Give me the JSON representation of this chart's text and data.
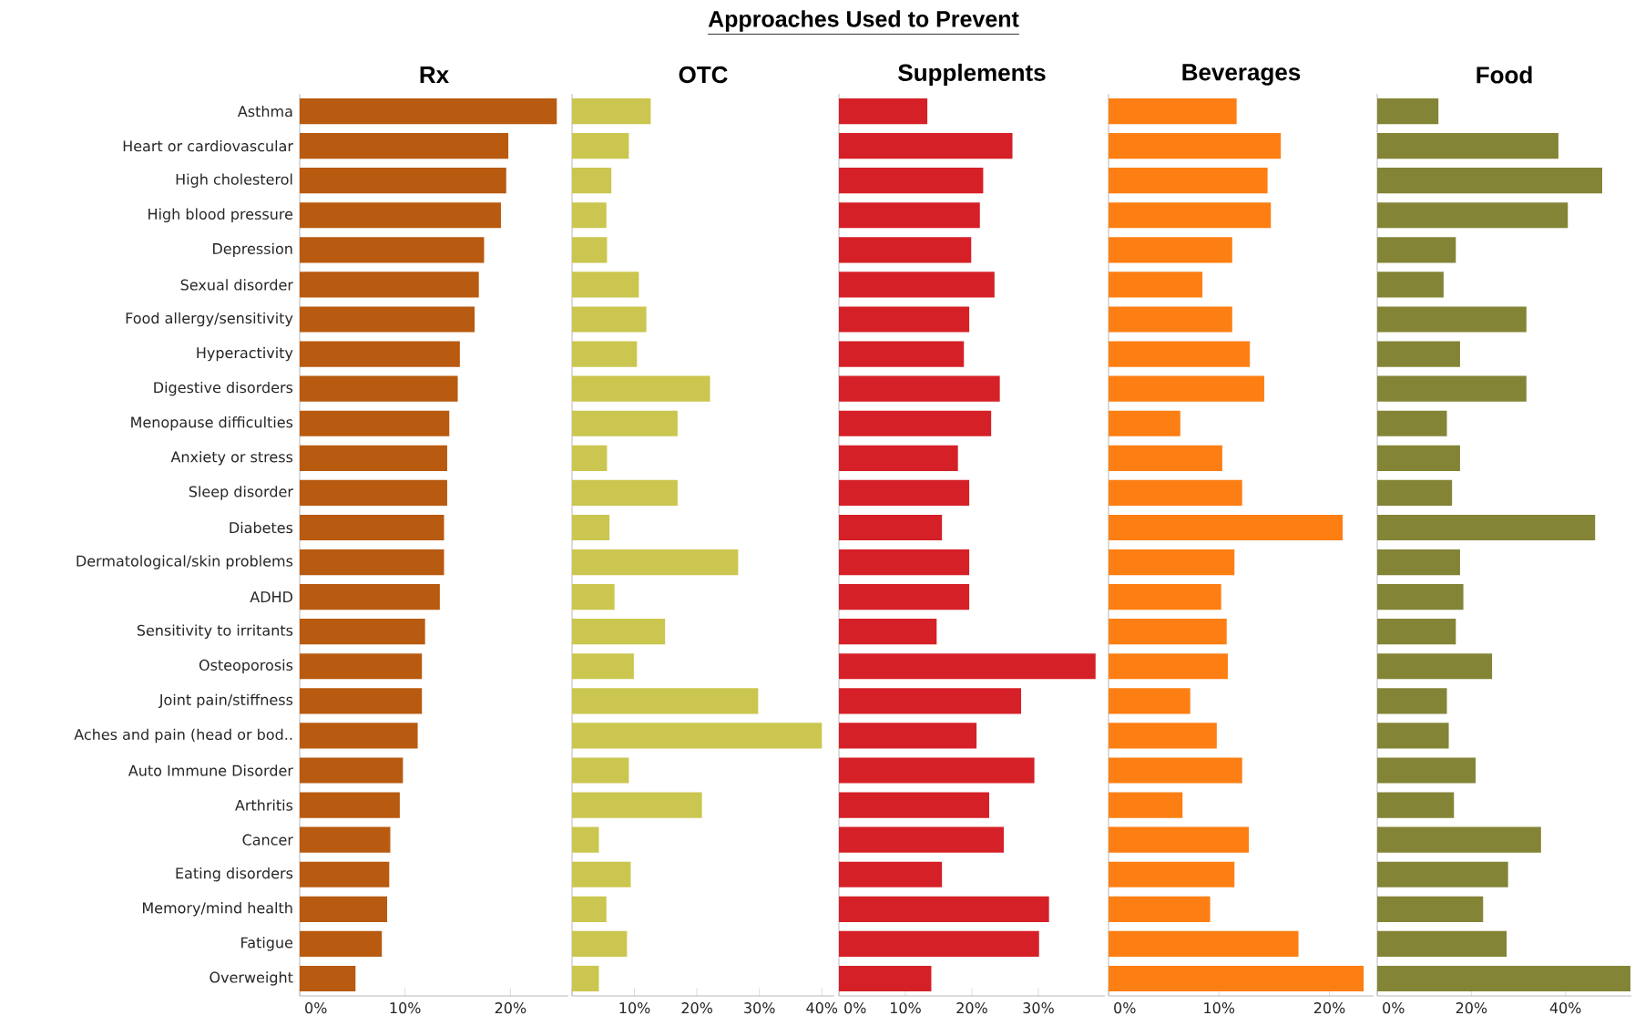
{
  "chart_data": [
    {
      "type": "bar",
      "orientation": "horizontal",
      "title": "Rx",
      "color": "#b85a0f",
      "categories": [
        "Asthma",
        "Heart or cardiovascular",
        "High cholesterol",
        "High blood pressure",
        "Depression",
        "Sexual disorder",
        "Food allergy/sensitivity",
        "Hyperactivity",
        "Digestive disorders",
        "Menopause difficulties",
        "Anxiety or stress",
        "Sleep disorder",
        "Diabetes",
        "Dermatological/skin problems",
        "ADHD",
        "Sensitivity to irritants",
        "Osteoporosis",
        "Joint pain/stiffness",
        "Aches and pain (head or bod..",
        "Auto Immune Disorder",
        "Arthritis",
        "Cancer",
        "Eating disorders",
        "Memory/mind health",
        "Fatigue",
        "Overweight"
      ],
      "values": [
        24.4,
        19.8,
        19.6,
        19.1,
        17.5,
        17.0,
        16.6,
        15.2,
        15.0,
        14.2,
        14.0,
        14.0,
        13.7,
        13.7,
        13.3,
        11.9,
        11.6,
        11.6,
        11.2,
        9.8,
        9.5,
        8.6,
        8.5,
        8.3,
        7.8,
        5.3
      ],
      "xlim": [
        0,
        25.5
      ],
      "xticks": [
        {
          "value": 0,
          "label": "0%"
        },
        {
          "value": 10,
          "label": "10%"
        },
        {
          "value": 20,
          "label": "20%"
        }
      ]
    },
    {
      "type": "bar",
      "orientation": "horizontal",
      "title": "OTC",
      "color": "#cbc64f",
      "tick_labels": "x",
      "categories": [
        null,
        null,
        null,
        null,
        null,
        null,
        null,
        null,
        null,
        null,
        null,
        null,
        null,
        null,
        null,
        null,
        null,
        null,
        null,
        null,
        null,
        null,
        null,
        null,
        null,
        null
      ],
      "values": [
        12.6,
        9.1,
        6.3,
        5.5,
        5.6,
        10.7,
        11.9,
        10.4,
        22.1,
        16.9,
        5.6,
        16.9,
        6.0,
        26.6,
        6.8,
        14.9,
        9.9,
        29.8,
        40.0,
        9.1,
        20.8,
        4.3,
        9.4,
        5.5,
        8.8,
        4.3
      ],
      "xlim": [
        0,
        42
      ],
      "xticks": [
        {
          "value": 0,
          "label": null
        },
        {
          "value": 10,
          "label": "10%"
        },
        {
          "value": 20,
          "label": "20%"
        },
        {
          "value": 30,
          "label": "30%"
        },
        {
          "value": 40,
          "label": "40%"
        }
      ]
    },
    {
      "type": "bar",
      "orientation": "horizontal",
      "title": "Approaches Used to Prevent",
      "subtitle": "Supplements",
      "color": "#d62027",
      "tick_labels": "x",
      "categories": [
        null,
        null,
        null,
        null,
        null,
        null,
        null,
        null,
        null,
        null,
        null,
        null,
        null,
        null,
        null,
        null,
        null,
        null,
        null,
        null,
        null,
        null,
        null,
        null,
        null,
        null
      ],
      "values": [
        13.3,
        26.1,
        21.7,
        21.2,
        19.9,
        23.4,
        19.6,
        18.8,
        24.2,
        22.9,
        17.9,
        19.6,
        15.5,
        19.6,
        19.6,
        14.7,
        38.6,
        27.4,
        20.7,
        29.4,
        22.6,
        24.8,
        15.5,
        31.6,
        30.1,
        13.9
      ],
      "xlim": [
        0,
        40
      ],
      "xticks": [
        {
          "value": 0,
          "label": "0%"
        },
        {
          "value": 10,
          "label": "10%"
        },
        {
          "value": 20,
          "label": "20%"
        },
        {
          "value": 30,
          "label": "30%"
        }
      ]
    },
    {
      "type": "bar",
      "orientation": "horizontal",
      "title": "Beverages",
      "color": "#fd7f13",
      "tick_labels": "x",
      "categories": [
        null,
        null,
        null,
        null,
        null,
        null,
        null,
        null,
        null,
        null,
        null,
        null,
        null,
        null,
        null,
        null,
        null,
        null,
        null,
        null,
        null,
        null,
        null,
        null,
        null,
        null
      ],
      "values": [
        11.6,
        15.6,
        14.4,
        14.7,
        11.2,
        8.5,
        11.2,
        12.8,
        14.1,
        6.5,
        10.3,
        12.1,
        21.2,
        11.4,
        10.2,
        10.7,
        10.8,
        7.4,
        9.8,
        12.1,
        6.7,
        12.7,
        11.4,
        9.2,
        17.2,
        23.1
      ],
      "xlim": [
        0,
        24
      ],
      "xticks": [
        {
          "value": 0,
          "label": "0%"
        },
        {
          "value": 10,
          "label": "10%"
        },
        {
          "value": 20,
          "label": "20%"
        }
      ]
    },
    {
      "type": "bar",
      "orientation": "horizontal",
      "title": "Food",
      "color": "#838436",
      "tick_labels": "x",
      "categories": [
        null,
        null,
        null,
        null,
        null,
        null,
        null,
        null,
        null,
        null,
        null,
        null,
        null,
        null,
        null,
        null,
        null,
        null,
        null,
        null,
        null,
        null,
        null,
        null,
        null,
        null
      ],
      "values": [
        13.0,
        38.5,
        47.8,
        40.5,
        16.7,
        14.1,
        31.7,
        17.6,
        31.7,
        14.8,
        17.6,
        15.9,
        46.3,
        17.6,
        18.3,
        16.7,
        24.4,
        14.8,
        15.2,
        20.9,
        16.3,
        34.8,
        27.8,
        22.5,
        27.5,
        53.8
      ],
      "xlim": [
        0,
        54
      ],
      "xticks": [
        {
          "value": 0,
          "label": "0%"
        },
        {
          "value": 20,
          "label": "20%"
        },
        {
          "value": 40,
          "label": "40%"
        }
      ]
    }
  ]
}
